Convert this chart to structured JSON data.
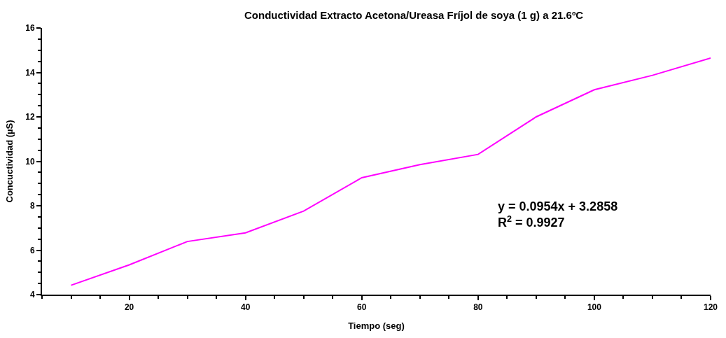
{
  "chart_data": {
    "type": "line",
    "title": "Conductividad Extracto Acetona/Ureasa Fríjol de soya (1 g) a 21.6ºC",
    "xlabel": "Tiempo (seg)",
    "ylabel": "Concuctividad (µS)",
    "x": [
      10,
      20,
      30,
      40,
      50,
      60,
      70,
      80,
      90,
      100,
      110,
      120
    ],
    "series": [
      {
        "color": "#ff00ff",
        "values": [
          4.42,
          5.34,
          6.39,
          6.78,
          7.76,
          9.26,
          9.85,
          10.31,
          12.0,
          13.22,
          13.87,
          14.65
        ]
      }
    ],
    "xlim": [
      5,
      120
    ],
    "xticks": [
      20,
      40,
      60,
      80,
      100,
      120
    ],
    "ylim": [
      4,
      16
    ],
    "yticks": [
      4,
      6,
      8,
      10,
      12,
      14,
      16
    ],
    "marker": "none",
    "line_style": "solid",
    "annotations": [
      "y = 0.0954x + 3.2858\nR$^{2}$ = 0.9927"
    ]
  }
}
